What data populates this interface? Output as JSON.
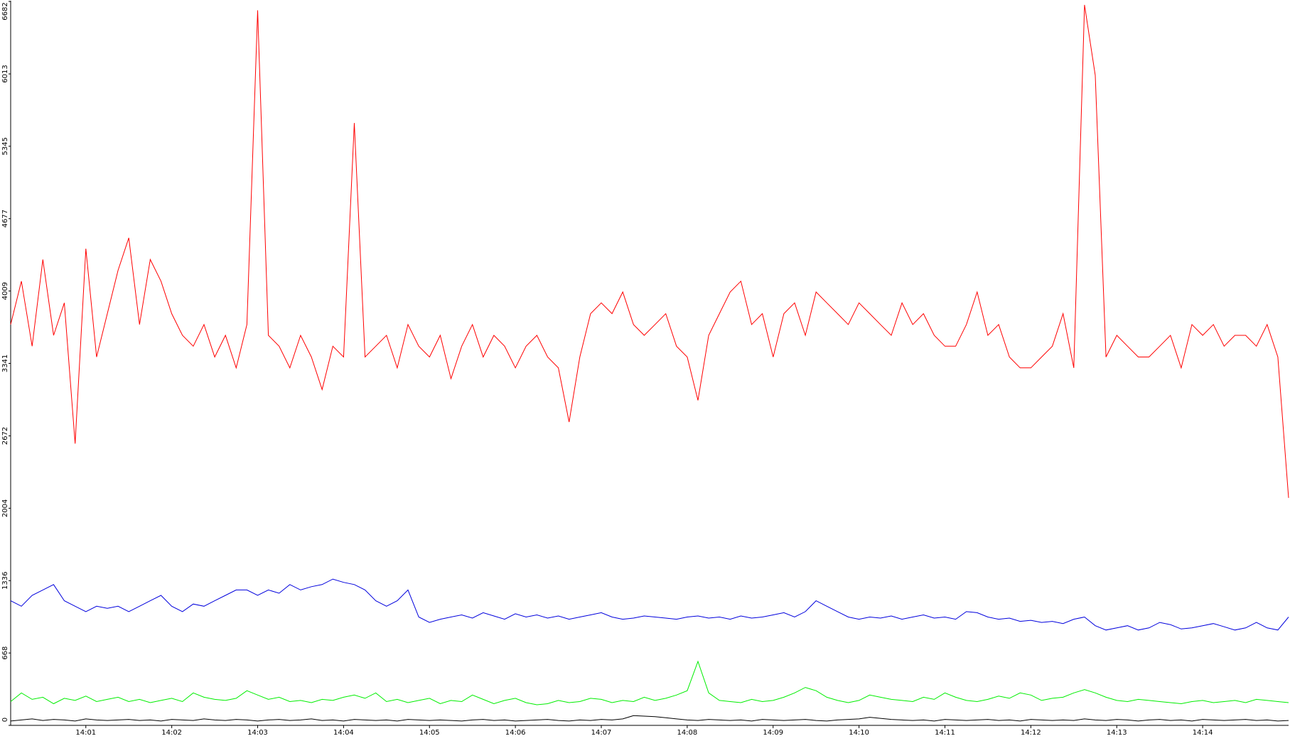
{
  "chart_data": {
    "type": "line",
    "categories": [
      null,
      null,
      null,
      null,
      null,
      null,
      null,
      "14:01",
      null,
      null,
      null,
      null,
      null,
      null,
      null,
      "14:02",
      null,
      null,
      null,
      null,
      null,
      null,
      null,
      "14:03",
      null,
      null,
      null,
      null,
      null,
      null,
      null,
      "14:04",
      null,
      null,
      null,
      null,
      null,
      null,
      null,
      "14:05",
      null,
      null,
      null,
      null,
      null,
      null,
      null,
      "14:06",
      null,
      null,
      null,
      null,
      null,
      null,
      null,
      "14:07",
      null,
      null,
      null,
      null,
      null,
      null,
      null,
      "14:08",
      null,
      null,
      null,
      null,
      null,
      null,
      null,
      "14:09",
      null,
      null,
      null,
      null,
      null,
      null,
      null,
      "14:10",
      null,
      null,
      null,
      null,
      null,
      null,
      null,
      "14:11",
      null,
      null,
      null,
      null,
      null,
      null,
      null,
      "14:12",
      null,
      null,
      null,
      null,
      null,
      null,
      null,
      "14:13",
      null,
      null,
      null,
      null,
      null,
      null,
      null,
      "14:14",
      null,
      null,
      null,
      null,
      null,
      null,
      null,
      null
    ],
    "series": [
      {
        "color": "#ff0000",
        "values": [
          3700,
          4100,
          3500,
          4300,
          3600,
          3900,
          2600,
          4400,
          3400,
          3800,
          4200,
          4500,
          3700,
          4300,
          4100,
          3800,
          3600,
          3500,
          3700,
          3400,
          3600,
          3300,
          3700,
          6600,
          3600,
          3500,
          3300,
          3600,
          3400,
          3100,
          3500,
          3400,
          5560,
          3400,
          3500,
          3600,
          3300,
          3700,
          3500,
          3400,
          3600,
          3200,
          3500,
          3700,
          3400,
          3600,
          3500,
          3300,
          3500,
          3600,
          3400,
          3300,
          2800,
          3400,
          3800,
          3900,
          3800,
          4000,
          3700,
          3600,
          3700,
          3800,
          3500,
          3400,
          3000,
          3600,
          3800,
          4000,
          4100,
          3700,
          3800,
          3400,
          3800,
          3900,
          3600,
          4000,
          3900,
          3800,
          3700,
          3900,
          3800,
          3700,
          3600,
          3900,
          3700,
          3800,
          3600,
          3500,
          3500,
          3700,
          4000,
          3600,
          3700,
          3400,
          3300,
          3300,
          3400,
          3500,
          3800,
          3300,
          6650,
          6000,
          3400,
          3600,
          3500,
          3400,
          3400,
          3500,
          3600,
          3300,
          3700,
          3600,
          3700,
          3500,
          3600,
          3600,
          3500,
          3700,
          3400,
          2100
        ]
      },
      {
        "color": "#0000dd",
        "values": [
          1150,
          1100,
          1200,
          1250,
          1300,
          1150,
          1100,
          1050,
          1100,
          1080,
          1100,
          1050,
          1100,
          1150,
          1200,
          1100,
          1050,
          1120,
          1100,
          1150,
          1200,
          1250,
          1250,
          1200,
          1250,
          1220,
          1300,
          1250,
          1280,
          1300,
          1350,
          1320,
          1300,
          1250,
          1150,
          1100,
          1150,
          1250,
          1000,
          950,
          980,
          1000,
          1020,
          990,
          1040,
          1010,
          980,
          1030,
          1000,
          1020,
          990,
          1010,
          980,
          1000,
          1020,
          1040,
          1000,
          980,
          990,
          1010,
          1000,
          990,
          980,
          1000,
          1010,
          990,
          1000,
          980,
          1010,
          990,
          1000,
          1020,
          1040,
          1000,
          1050,
          1150,
          1100,
          1050,
          1000,
          980,
          1000,
          990,
          1010,
          980,
          1000,
          1020,
          990,
          1000,
          980,
          1050,
          1040,
          1000,
          980,
          990,
          960,
          970,
          950,
          960,
          940,
          980,
          1000,
          920,
          880,
          900,
          920,
          880,
          900,
          950,
          930,
          890,
          900,
          920,
          940,
          910,
          880,
          900,
          950,
          900,
          880,
          1000
        ]
      },
      {
        "color": "#00ee00",
        "values": [
          220,
          300,
          240,
          260,
          200,
          250,
          230,
          270,
          220,
          240,
          260,
          220,
          240,
          210,
          230,
          250,
          220,
          300,
          260,
          240,
          230,
          250,
          320,
          280,
          240,
          260,
          220,
          230,
          210,
          240,
          230,
          260,
          280,
          250,
          300,
          220,
          240,
          210,
          230,
          250,
          200,
          230,
          220,
          280,
          240,
          200,
          230,
          250,
          210,
          190,
          200,
          230,
          210,
          220,
          250,
          240,
          210,
          230,
          220,
          260,
          230,
          250,
          280,
          320,
          590,
          300,
          230,
          220,
          210,
          240,
          220,
          230,
          260,
          300,
          350,
          320,
          260,
          230,
          210,
          230,
          280,
          260,
          240,
          230,
          220,
          260,
          240,
          300,
          260,
          230,
          220,
          240,
          270,
          250,
          300,
          280,
          230,
          250,
          260,
          300,
          330,
          300,
          260,
          230,
          220,
          240,
          230,
          220,
          210,
          200,
          220,
          230,
          210,
          220,
          230,
          210,
          240,
          230,
          220,
          210
        ]
      },
      {
        "color": "#000000",
        "values": [
          40,
          50,
          60,
          45,
          55,
          50,
          40,
          60,
          50,
          45,
          50,
          55,
          45,
          50,
          40,
          55,
          50,
          45,
          60,
          50,
          45,
          55,
          50,
          40,
          50,
          55,
          45,
          50,
          60,
          45,
          50,
          40,
          55,
          50,
          45,
          50,
          40,
          55,
          50,
          45,
          50,
          45,
          40,
          50,
          55,
          45,
          50,
          40,
          45,
          50,
          55,
          45,
          40,
          50,
          45,
          55,
          50,
          60,
          90,
          85,
          80,
          70,
          60,
          50,
          45,
          55,
          50,
          45,
          50,
          40,
          55,
          50,
          45,
          50,
          55,
          45,
          40,
          50,
          55,
          60,
          75,
          65,
          55,
          50,
          45,
          50,
          40,
          55,
          50,
          45,
          50,
          55,
          45,
          50,
          40,
          55,
          50,
          45,
          50,
          45,
          60,
          50,
          45,
          55,
          50,
          40,
          50,
          55,
          45,
          50,
          40,
          55,
          50,
          45,
          50,
          55,
          45,
          50,
          40,
          45
        ]
      }
    ],
    "ylim": [
      0,
      6682
    ],
    "yticks": [
      0,
      668,
      1336,
      2004,
      2672,
      3341,
      4009,
      4677,
      5345,
      6013,
      6682
    ]
  }
}
